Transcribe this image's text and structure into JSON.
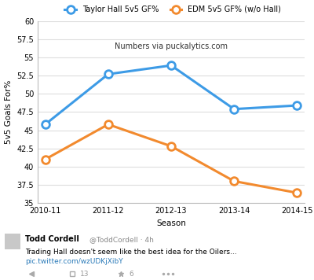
{
  "chart_data": {
    "type": "line",
    "x_label": "Season",
    "y_label": "5v5 Goals For%",
    "annotations": [
      "Numbers via puckalytics.com"
    ],
    "categories": [
      "2010-11",
      "2011-12",
      "2012-13",
      "2013-14",
      "2014-15"
    ],
    "series": [
      {
        "name": "Taylor Hall 5v5 GF%",
        "color": "#3d9be6",
        "marker": "circle",
        "values": [
          45.8,
          52.7,
          53.9,
          47.9,
          48.4
        ]
      },
      {
        "name": "EDM 5v5 GF% (w/o Hall)",
        "color": "#f28a2e",
        "marker": "circle",
        "values": [
          41.0,
          45.8,
          42.8,
          38.0,
          36.4
        ]
      }
    ],
    "ylim": [
      35,
      60
    ],
    "yticks": [
      35,
      37.5,
      40,
      42.5,
      45,
      47.5,
      50,
      52.5,
      55,
      57.5,
      60
    ],
    "grid": true,
    "legend": "upper center"
  },
  "tweet": {
    "author": "Todd Cordell",
    "handle": "@ToddCordell · 4h",
    "text": "Trading Hall doesn't seem like the best idea for the Oilers...",
    "link": "pic.twitter.com/wzUDKjXibY",
    "retweets": 13,
    "favorites": 6
  }
}
